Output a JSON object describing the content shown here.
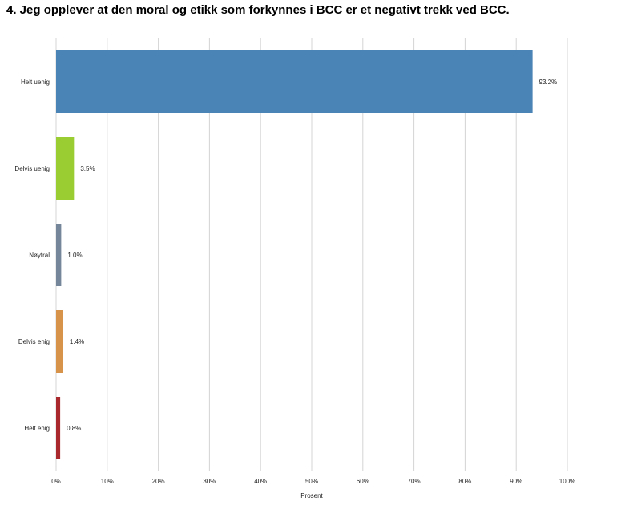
{
  "chart_data": {
    "type": "bar",
    "orientation": "horizontal",
    "title": "4. Jeg opplever at den moral og etikk som forkynnes i BCC er et negativt trekk ved BCC.",
    "xlabel": "Prosent",
    "ylabel": "",
    "xlim": [
      0,
      100
    ],
    "ticks": [
      "0%",
      "10%",
      "20%",
      "30%",
      "40%",
      "50%",
      "60%",
      "70%",
      "80%",
      "90%",
      "100%"
    ],
    "grid": true,
    "categories": [
      "Helt uenig",
      "Delvis uenig",
      "Nøytral",
      "Delvis enig",
      "Helt enig"
    ],
    "values": [
      93.2,
      3.5,
      1.0,
      1.4,
      0.8
    ],
    "labels": [
      "93.2%",
      "3.5%",
      "1.0%",
      "1.4%",
      "0.8%"
    ],
    "colors": [
      "#4a84b6",
      "#9acd32",
      "#75859a",
      "#d8934a",
      "#a8282d"
    ]
  }
}
